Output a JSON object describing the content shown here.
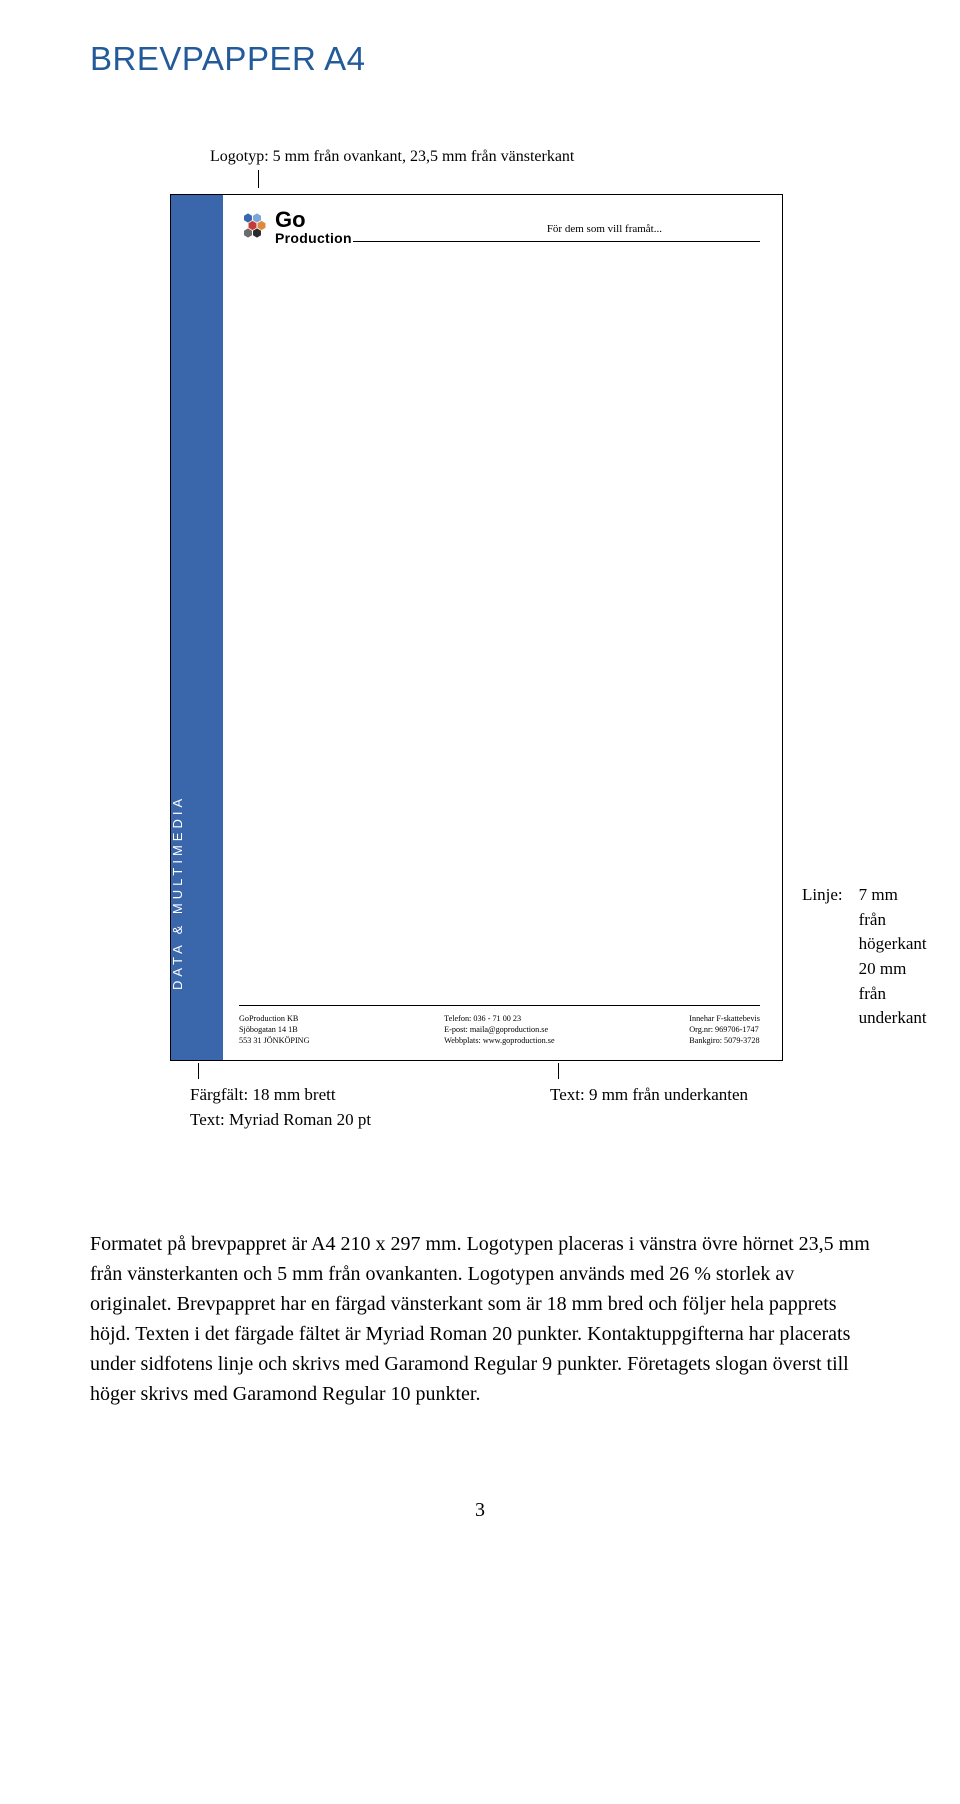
{
  "page_title": "BREVPAPPER A4",
  "page_title_color": "#235b9a",
  "page_title_fontsize": 33,
  "anno_top": "Logotyp: 5 mm från ovankant, 23,5 mm från vänsterkant",
  "anno_top_fontsize": 17,
  "a4": {
    "strip_color": "#3a66ab",
    "vertical_text": "DATA  &  MULTIMEDIA",
    "logo": {
      "go": "Go",
      "prod": "Production",
      "hex_colors": [
        "#3a66ab",
        "#7aa6d8",
        "#c63a3a",
        "#e0893d",
        "#6b6b6b",
        "#2b2b2b"
      ]
    },
    "slogan": "För dem som vill framåt...",
    "footer": {
      "col1": "GoProduction KB\nSjöbogatan 14 1B\n553 31 JÖNKÖPING",
      "col2": "Telefon: 036 - 71 00 23\nE-post: maila@goproduction.se\nWebbplats: www.goproduction.se",
      "col3": "Innehar F-skattebevis\nOrg.nr: 969706-1747\nBankgiro: 5079-3728"
    }
  },
  "right_anno_label": "Linje:",
  "right_anno_line1": "7 mm från högerkant",
  "right_anno_line2": "20 mm från underkant",
  "below_left_line1": "Färgfält: 18 mm brett",
  "below_left_line2": "Text: Myriad Roman 20 pt",
  "below_right": "Text: 9 mm från underkanten",
  "body_paragraph": "Formatet på brevpappret är A4 210 x 297 mm. Logotypen placeras i vänstra övre hörnet 23,5 mm från vänsterkanten och 5 mm från ovankanten. Logotypen används med 26 % storlek av originalet. Brevpappret har en färgad vänsterkant som är 18 mm bred och följer hela papprets höjd. Texten i det färgade fältet är Myriad Roman 20 punkter. Kontaktuppgifterna har placerats under sidfotens linje och skrivs med Garamond Regular 9 punkter. Företagets slogan överst till höger skrivs med Garamond Regular 10 punkter.",
  "page_number": "3"
}
